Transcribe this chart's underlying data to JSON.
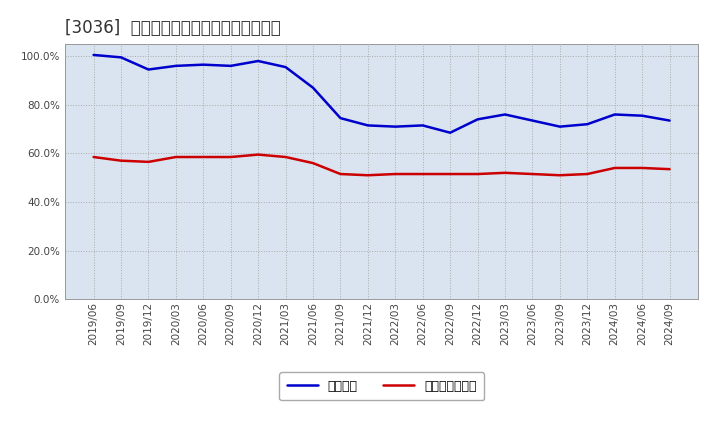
{
  "title": "[3036]  固定比率、固定長期適合率の推移",
  "x_labels": [
    "2019/06",
    "2019/09",
    "2019/12",
    "2020/03",
    "2020/06",
    "2020/09",
    "2020/12",
    "2021/03",
    "2021/06",
    "2021/09",
    "2021/12",
    "2022/03",
    "2022/06",
    "2022/09",
    "2022/12",
    "2023/03",
    "2023/06",
    "2023/09",
    "2023/12",
    "2024/03",
    "2024/06",
    "2024/09"
  ],
  "fixed_ratio": [
    100.5,
    99.5,
    94.5,
    96.0,
    96.5,
    96.0,
    98.0,
    95.5,
    87.0,
    74.5,
    71.5,
    71.0,
    71.5,
    68.5,
    74.0,
    76.0,
    73.5,
    71.0,
    72.0,
    76.0,
    75.5,
    73.5
  ],
  "fixed_long_ratio": [
    58.5,
    57.0,
    56.5,
    58.5,
    58.5,
    58.5,
    59.5,
    58.5,
    56.0,
    51.5,
    51.0,
    51.5,
    51.5,
    51.5,
    51.5,
    52.0,
    51.5,
    51.0,
    51.5,
    54.0,
    54.0,
    53.5
  ],
  "line1_color": "#0000cc",
  "line2_color": "#cc0000",
  "line1_label": "固定比率",
  "line2_label": "固定長期適合率",
  "bg_color": "#ffffff",
  "plot_bg_color": "#d9e4f0",
  "grid_color": "#aaaaaa",
  "ylim": [
    0,
    105
  ],
  "yticks": [
    0,
    20,
    40,
    60,
    80,
    100
  ],
  "title_fontsize": 12,
  "legend_fontsize": 9,
  "tick_fontsize": 7.5
}
